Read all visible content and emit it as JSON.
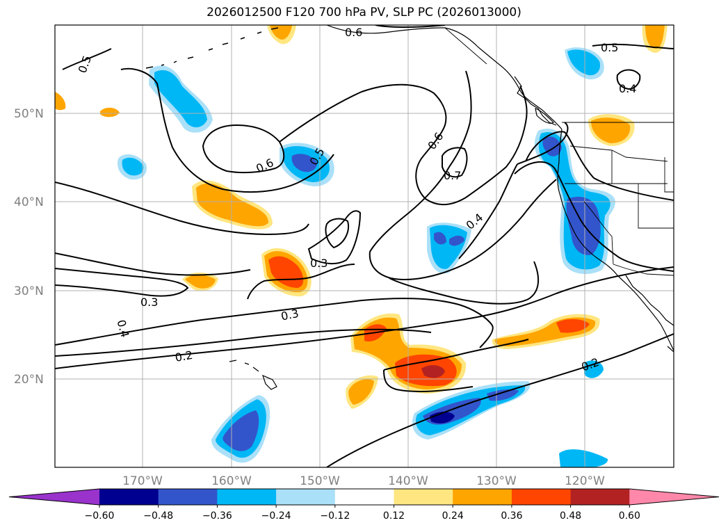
{
  "title": "2026012500 F120 700 hPa PV, SLP PC (2026013000)",
  "lat_labels": [
    "50°N",
    "40°N",
    "30°N",
    "20°N"
  ],
  "lon_labels": [
    "170°W",
    "160°W",
    "150°W",
    "140°W",
    "130°W",
    "120°W"
  ],
  "colorbar": {
    "tick_labels": [
      "−0.60",
      "−0.48",
      "−0.36",
      "−0.24",
      "−0.12",
      "0.12",
      "0.24",
      "0.36",
      "0.48",
      "0.60"
    ],
    "colors": [
      "#9933cc",
      "#000090",
      "#3355cc",
      "#00b7f5",
      "#aae0f8",
      "#ffffff",
      "#ffe680",
      "#ffa500",
      "#ff4500",
      "#b22222",
      "#ff88aa"
    ]
  },
  "contour_labels": [
    {
      "text": "0.6"
    },
    {
      "text": "0.5"
    },
    {
      "text": "0.5"
    },
    {
      "text": "0.4"
    },
    {
      "text": "0.6"
    },
    {
      "text": "0.5"
    },
    {
      "text": "0.6"
    },
    {
      "text": "0.7"
    },
    {
      "text": "0.4"
    },
    {
      "text": "0.3"
    },
    {
      "text": "0.3"
    },
    {
      "text": "0.3"
    },
    {
      "text": "0.4"
    },
    {
      "text": "0.2"
    },
    {
      "text": "0.2"
    }
  ]
}
